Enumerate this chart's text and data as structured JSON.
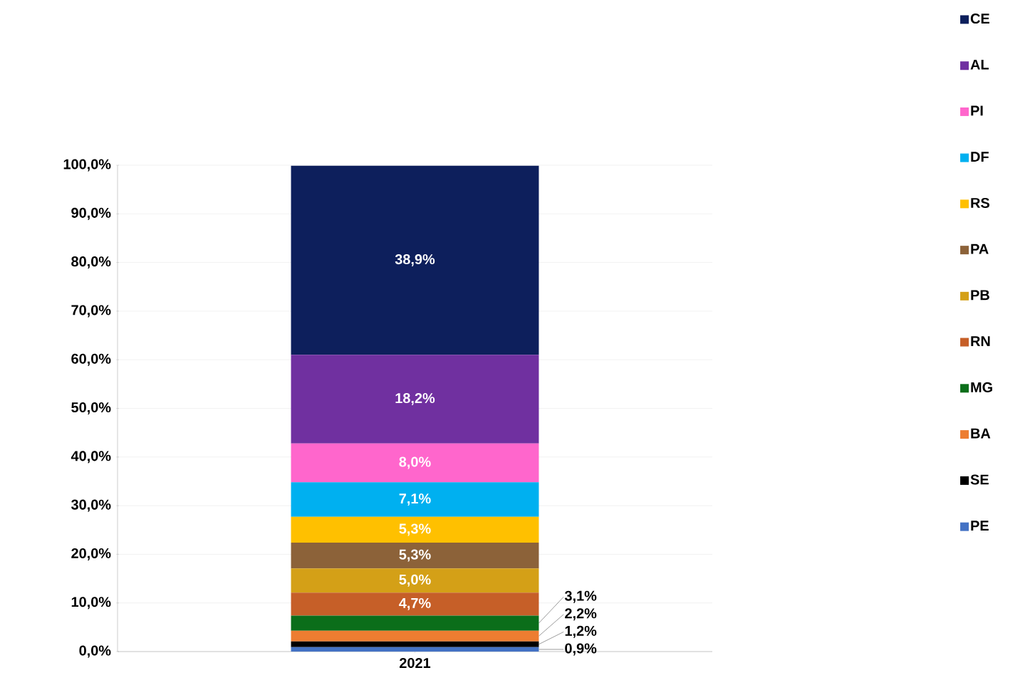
{
  "chart_data": {
    "type": "bar",
    "stacked": true,
    "categories": [
      "2021"
    ],
    "series": [
      {
        "name": "PE",
        "color": "#4472c4",
        "values": [
          0.9
        ],
        "value_labels": [
          "0,9%"
        ]
      },
      {
        "name": "SE",
        "color": "#000000",
        "values": [
          1.2
        ],
        "value_labels": [
          "1,2%"
        ]
      },
      {
        "name": "BA",
        "color": "#ed7d31",
        "values": [
          2.2
        ],
        "value_labels": [
          "2,2%"
        ]
      },
      {
        "name": "MG",
        "color": "#0b6e1a",
        "values": [
          3.1
        ],
        "value_labels": [
          "3,1%"
        ]
      },
      {
        "name": "RN",
        "color": "#c65f28",
        "values": [
          4.7
        ],
        "value_labels": [
          "4,7%"
        ]
      },
      {
        "name": "PB",
        "color": "#d4a017",
        "values": [
          5.0
        ],
        "value_labels": [
          "5,0%"
        ]
      },
      {
        "name": "PA",
        "color": "#8c6239",
        "values": [
          5.3
        ],
        "value_labels": [
          "5,3%"
        ]
      },
      {
        "name": "RS",
        "color": "#ffc000",
        "values": [
          5.3
        ],
        "value_labels": [
          "5,3%"
        ]
      },
      {
        "name": "DF",
        "color": "#00b0f0",
        "values": [
          7.1
        ],
        "value_labels": [
          "7,1%"
        ]
      },
      {
        "name": "PI",
        "color": "#ff66cc",
        "values": [
          8.0
        ],
        "value_labels": [
          "8,0%"
        ]
      },
      {
        "name": "AL",
        "color": "#7030a0",
        "values": [
          18.2
        ],
        "value_labels": [
          "18,2%"
        ]
      },
      {
        "name": "CE",
        "color": "#0d1f5c",
        "values": [
          38.9
        ],
        "value_labels": [
          "38,9%"
        ]
      }
    ],
    "ylim": [
      0,
      100
    ],
    "yticks": [
      {
        "value": 0,
        "label": "0,0%"
      },
      {
        "value": 10,
        "label": "10,0%"
      },
      {
        "value": 20,
        "label": "20,0%"
      },
      {
        "value": 30,
        "label": "30,0%"
      },
      {
        "value": 40,
        "label": "40,0%"
      },
      {
        "value": 50,
        "label": "50,0%"
      },
      {
        "value": 60,
        "label": "60,0%"
      },
      {
        "value": 70,
        "label": "70,0%"
      },
      {
        "value": 80,
        "label": "80,0%"
      },
      {
        "value": 90,
        "label": "90,0%"
      },
      {
        "value": 100,
        "label": "100,0%"
      }
    ],
    "grid": "y",
    "legend": "right"
  }
}
